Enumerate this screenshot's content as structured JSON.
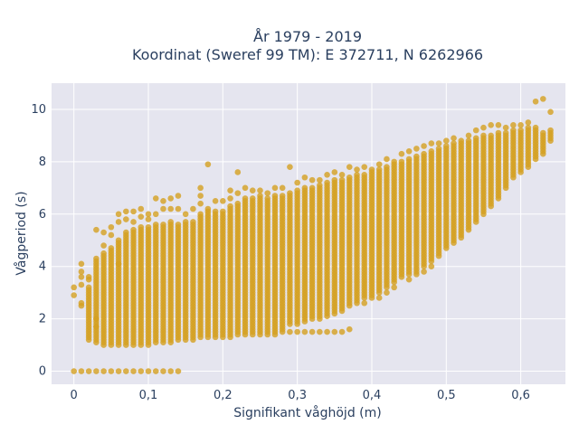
{
  "chart_data": {
    "type": "scatter",
    "title_line1": "År 1979 - 2019",
    "title_line2": "Koordinat (Sweref 99 TM): E 372711, N 6262966",
    "xlabel": "Signifikant våghöjd (m)",
    "ylabel": "Vågperiod (s)",
    "xlim": [
      -0.03,
      0.66
    ],
    "ylim": [
      -0.5,
      11
    ],
    "xticks": [
      0,
      0.1,
      0.2,
      0.3,
      0.4,
      0.5,
      0.6
    ],
    "xtick_labels": [
      "0",
      "0,1",
      "0,2",
      "0,3",
      "0,4",
      "0,5",
      "0,6"
    ],
    "yticks": [
      0,
      2,
      4,
      6,
      8,
      10
    ],
    "ytick_labels": [
      "0",
      "2",
      "4",
      "6",
      "8",
      "10"
    ],
    "grid": true,
    "marker_color": "#d4a021",
    "plot_bg": "#e5e5ef",
    "x_step": 0.01,
    "columns": [
      {
        "x": 0.0,
        "low": 0.0,
        "high": 0.0,
        "extras": [
          2.9,
          3.2
        ]
      },
      {
        "x": 0.01,
        "low": 0.0,
        "high": 0.0,
        "extras": [
          2.5,
          2.6,
          3.3,
          3.6,
          3.8,
          4.1
        ]
      },
      {
        "x": 0.02,
        "low": 1.2,
        "high": 3.2,
        "extras": [
          0.0,
          3.5,
          3.6
        ]
      },
      {
        "x": 0.03,
        "low": 1.1,
        "high": 4.3,
        "extras": [
          0.0,
          5.4,
          2.0,
          1.7
        ]
      },
      {
        "x": 0.04,
        "low": 1.0,
        "high": 4.5,
        "extras": [
          0.0,
          5.3,
          4.8
        ]
      },
      {
        "x": 0.05,
        "low": 1.0,
        "high": 4.7,
        "extras": [
          0.0,
          5.5,
          5.2
        ]
      },
      {
        "x": 0.06,
        "low": 1.0,
        "high": 5.0,
        "extras": [
          0.0,
          6.0,
          5.7,
          4.1
        ]
      },
      {
        "x": 0.07,
        "low": 1.0,
        "high": 5.3,
        "extras": [
          0.0,
          6.1,
          5.8
        ]
      },
      {
        "x": 0.08,
        "low": 1.0,
        "high": 5.4,
        "extras": [
          0.0,
          6.1,
          5.7
        ]
      },
      {
        "x": 0.09,
        "low": 1.0,
        "high": 5.5,
        "extras": [
          0.0,
          6.2,
          5.9
        ]
      },
      {
        "x": 0.1,
        "low": 1.0,
        "high": 5.5,
        "extras": [
          0.0,
          6.0,
          5.8
        ]
      },
      {
        "x": 0.11,
        "low": 1.1,
        "high": 5.6,
        "extras": [
          0.0,
          6.6,
          6.0
        ]
      },
      {
        "x": 0.12,
        "low": 1.1,
        "high": 5.6,
        "extras": [
          0.0,
          6.5,
          6.2
        ]
      },
      {
        "x": 0.13,
        "low": 1.1,
        "high": 5.7,
        "extras": [
          0.0,
          6.6,
          6.2
        ]
      },
      {
        "x": 0.14,
        "low": 1.2,
        "high": 5.6,
        "extras": [
          0.0,
          6.7,
          6.2
        ]
      },
      {
        "x": 0.15,
        "low": 1.2,
        "high": 5.7,
        "extras": [
          6.0
        ]
      },
      {
        "x": 0.16,
        "low": 1.2,
        "high": 5.7,
        "extras": [
          6.2
        ]
      },
      {
        "x": 0.17,
        "low": 1.3,
        "high": 6.0,
        "extras": [
          7.0,
          6.7,
          6.4
        ]
      },
      {
        "x": 0.18,
        "low": 1.3,
        "high": 6.2,
        "extras": [
          7.9
        ]
      },
      {
        "x": 0.19,
        "low": 1.3,
        "high": 6.1,
        "extras": [
          6.5
        ]
      },
      {
        "x": 0.2,
        "low": 1.3,
        "high": 6.1,
        "extras": [
          6.5
        ]
      },
      {
        "x": 0.21,
        "low": 1.3,
        "high": 6.3,
        "extras": [
          6.9,
          6.6
        ]
      },
      {
        "x": 0.22,
        "low": 1.4,
        "high": 6.4,
        "extras": [
          7.6,
          6.8
        ]
      },
      {
        "x": 0.23,
        "low": 1.4,
        "high": 6.6,
        "extras": [
          7.0
        ]
      },
      {
        "x": 0.24,
        "low": 1.4,
        "high": 6.6,
        "extras": [
          6.9
        ]
      },
      {
        "x": 0.25,
        "low": 1.4,
        "high": 6.7,
        "extras": [
          6.9
        ]
      },
      {
        "x": 0.26,
        "low": 1.4,
        "high": 6.6,
        "extras": [
          6.8
        ]
      },
      {
        "x": 0.27,
        "low": 1.4,
        "high": 6.7,
        "extras": [
          7.0
        ]
      },
      {
        "x": 0.28,
        "low": 1.5,
        "high": 6.7,
        "extras": [
          7.0
        ]
      },
      {
        "x": 0.29,
        "low": 1.8,
        "high": 6.8,
        "extras": [
          7.8,
          1.5
        ]
      },
      {
        "x": 0.3,
        "low": 1.8,
        "high": 6.9,
        "extras": [
          7.2,
          1.5
        ]
      },
      {
        "x": 0.31,
        "low": 1.9,
        "high": 7.0,
        "extras": [
          7.4,
          1.5
        ]
      },
      {
        "x": 0.32,
        "low": 2.0,
        "high": 7.0,
        "extras": [
          7.3,
          1.5
        ]
      },
      {
        "x": 0.33,
        "low": 2.0,
        "high": 7.1,
        "extras": [
          7.3,
          1.5
        ]
      },
      {
        "x": 0.34,
        "low": 2.1,
        "high": 7.2,
        "extras": [
          7.5,
          1.5
        ]
      },
      {
        "x": 0.35,
        "low": 2.2,
        "high": 7.3,
        "extras": [
          7.6,
          1.5
        ]
      },
      {
        "x": 0.36,
        "low": 2.3,
        "high": 7.3,
        "extras": [
          7.5,
          1.5
        ]
      },
      {
        "x": 0.37,
        "low": 2.5,
        "high": 7.4,
        "extras": [
          7.8,
          1.6
        ]
      },
      {
        "x": 0.38,
        "low": 2.6,
        "high": 7.5,
        "extras": [
          7.7
        ]
      },
      {
        "x": 0.39,
        "low": 2.8,
        "high": 7.5,
        "extras": [
          7.8,
          2.6
        ]
      },
      {
        "x": 0.4,
        "low": 2.9,
        "high": 7.6,
        "extras": [
          7.7,
          2.8
        ]
      },
      {
        "x": 0.41,
        "low": 3.0,
        "high": 7.7,
        "extras": [
          7.9,
          2.8
        ]
      },
      {
        "x": 0.42,
        "low": 3.2,
        "high": 7.8,
        "extras": [
          8.1,
          3.0
        ]
      },
      {
        "x": 0.43,
        "low": 3.4,
        "high": 7.9,
        "extras": [
          8.0,
          3.2
        ]
      },
      {
        "x": 0.44,
        "low": 3.6,
        "high": 8.0,
        "extras": [
          8.3
        ]
      },
      {
        "x": 0.45,
        "low": 3.7,
        "high": 8.1,
        "extras": [
          8.4,
          3.5
        ]
      },
      {
        "x": 0.46,
        "low": 3.8,
        "high": 8.2,
        "extras": [
          8.5,
          3.7
        ]
      },
      {
        "x": 0.47,
        "low": 4.0,
        "high": 8.3,
        "extras": [
          8.6,
          3.8
        ]
      },
      {
        "x": 0.48,
        "low": 4.2,
        "high": 8.4,
        "extras": [
          8.7,
          4.0
        ]
      },
      {
        "x": 0.49,
        "low": 4.4,
        "high": 8.5,
        "extras": [
          8.7
        ]
      },
      {
        "x": 0.5,
        "low": 4.7,
        "high": 8.6,
        "extras": [
          8.8
        ]
      },
      {
        "x": 0.51,
        "low": 4.9,
        "high": 8.7,
        "extras": [
          8.9
        ]
      },
      {
        "x": 0.52,
        "low": 5.1,
        "high": 8.7,
        "extras": [
          8.8
        ]
      },
      {
        "x": 0.53,
        "low": 5.4,
        "high": 8.8,
        "extras": [
          9.0
        ]
      },
      {
        "x": 0.54,
        "low": 5.7,
        "high": 8.9,
        "extras": [
          9.2
        ]
      },
      {
        "x": 0.55,
        "low": 6.0,
        "high": 9.0,
        "extras": [
          9.3
        ]
      },
      {
        "x": 0.56,
        "low": 6.3,
        "high": 9.0,
        "extras": [
          9.4
        ]
      },
      {
        "x": 0.57,
        "low": 6.6,
        "high": 9.1,
        "extras": [
          9.4
        ]
      },
      {
        "x": 0.58,
        "low": 7.0,
        "high": 9.1,
        "extras": [
          9.3
        ]
      },
      {
        "x": 0.59,
        "low": 7.4,
        "high": 9.2,
        "extras": [
          9.4
        ]
      },
      {
        "x": 0.6,
        "low": 7.6,
        "high": 9.2,
        "extras": [
          9.4
        ]
      },
      {
        "x": 0.61,
        "low": 7.8,
        "high": 9.3,
        "extras": [
          9.5
        ]
      },
      {
        "x": 0.62,
        "low": 8.1,
        "high": 9.3,
        "extras": [
          10.3
        ]
      },
      {
        "x": 0.63,
        "low": 8.3,
        "high": 9.1,
        "extras": [
          10.4
        ]
      },
      {
        "x": 0.64,
        "low": 8.8,
        "high": 9.2,
        "extras": [
          9.9
        ]
      }
    ]
  }
}
